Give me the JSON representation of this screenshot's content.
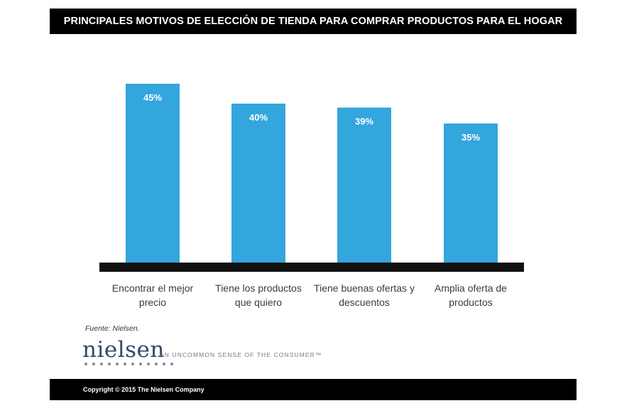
{
  "header": {
    "title": "PRINCIPALES MOTIVOS DE ELECCIÓN DE TIENDA PARA COMPRAR PRODUCTOS PARA EL HOGAR"
  },
  "chart_data": {
    "type": "bar",
    "title": "PRINCIPALES MOTIVOS DE ELECCIÓN DE TIENDA PARA COMPRAR PRODUCTOS PARA EL HOGAR",
    "categories": [
      [
        "Encontrar el mejor",
        "precio"
      ],
      [
        "Tiene los productos",
        "que quiero"
      ],
      [
        "Tiene buenas ofertas y",
        "descuentos"
      ],
      [
        "Amplia oferta de",
        "productos"
      ]
    ],
    "values": [
      45,
      40,
      39,
      35
    ],
    "value_labels": [
      "45%",
      "40%",
      "39%",
      "35%"
    ],
    "ylim": [
      0,
      45
    ],
    "grid": false,
    "legend": "none",
    "xlabel": "",
    "ylabel": ""
  },
  "colors": {
    "bar": "#33a6dd",
    "axis": "#111111",
    "bar_label": "#ffffff"
  },
  "footer": {
    "source": "Fuente: Nielsen.",
    "logo": "nielsen",
    "tagline": "AN UNCOMMON SENSE OF THE CONSUMER™",
    "copyright": "Copyright © 2015 The Nielsen Company"
  }
}
